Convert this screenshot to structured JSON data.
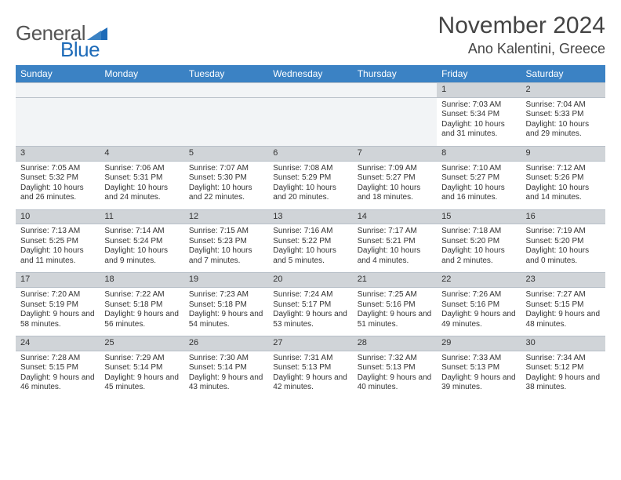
{
  "brand": {
    "word1": "General",
    "word2": "Blue"
  },
  "title": "November 2024",
  "location": "Ano Kalentini, Greece",
  "colors": {
    "header_blue": "#3b82c4",
    "daynum_row": "#d0d4d8",
    "border": "#b8c0c8",
    "text": "#333333",
    "background": "#ffffff",
    "logo_blue": "#1e6bb8"
  },
  "weekdays": [
    "Sunday",
    "Monday",
    "Tuesday",
    "Wednesday",
    "Thursday",
    "Friday",
    "Saturday"
  ],
  "weeks": [
    [
      {
        "day": "",
        "lines": []
      },
      {
        "day": "",
        "lines": []
      },
      {
        "day": "",
        "lines": []
      },
      {
        "day": "",
        "lines": []
      },
      {
        "day": "",
        "lines": []
      },
      {
        "day": "1",
        "lines": [
          "Sunrise: 7:03 AM",
          "Sunset: 5:34 PM",
          "Daylight: 10 hours and 31 minutes."
        ]
      },
      {
        "day": "2",
        "lines": [
          "Sunrise: 7:04 AM",
          "Sunset: 5:33 PM",
          "Daylight: 10 hours and 29 minutes."
        ]
      }
    ],
    [
      {
        "day": "3",
        "lines": [
          "Sunrise: 7:05 AM",
          "Sunset: 5:32 PM",
          "Daylight: 10 hours and 26 minutes."
        ]
      },
      {
        "day": "4",
        "lines": [
          "Sunrise: 7:06 AM",
          "Sunset: 5:31 PM",
          "Daylight: 10 hours and 24 minutes."
        ]
      },
      {
        "day": "5",
        "lines": [
          "Sunrise: 7:07 AM",
          "Sunset: 5:30 PM",
          "Daylight: 10 hours and 22 minutes."
        ]
      },
      {
        "day": "6",
        "lines": [
          "Sunrise: 7:08 AM",
          "Sunset: 5:29 PM",
          "Daylight: 10 hours and 20 minutes."
        ]
      },
      {
        "day": "7",
        "lines": [
          "Sunrise: 7:09 AM",
          "Sunset: 5:27 PM",
          "Daylight: 10 hours and 18 minutes."
        ]
      },
      {
        "day": "8",
        "lines": [
          "Sunrise: 7:10 AM",
          "Sunset: 5:27 PM",
          "Daylight: 10 hours and 16 minutes."
        ]
      },
      {
        "day": "9",
        "lines": [
          "Sunrise: 7:12 AM",
          "Sunset: 5:26 PM",
          "Daylight: 10 hours and 14 minutes."
        ]
      }
    ],
    [
      {
        "day": "10",
        "lines": [
          "Sunrise: 7:13 AM",
          "Sunset: 5:25 PM",
          "Daylight: 10 hours and 11 minutes."
        ]
      },
      {
        "day": "11",
        "lines": [
          "Sunrise: 7:14 AM",
          "Sunset: 5:24 PM",
          "Daylight: 10 hours and 9 minutes."
        ]
      },
      {
        "day": "12",
        "lines": [
          "Sunrise: 7:15 AM",
          "Sunset: 5:23 PM",
          "Daylight: 10 hours and 7 minutes."
        ]
      },
      {
        "day": "13",
        "lines": [
          "Sunrise: 7:16 AM",
          "Sunset: 5:22 PM",
          "Daylight: 10 hours and 5 minutes."
        ]
      },
      {
        "day": "14",
        "lines": [
          "Sunrise: 7:17 AM",
          "Sunset: 5:21 PM",
          "Daylight: 10 hours and 4 minutes."
        ]
      },
      {
        "day": "15",
        "lines": [
          "Sunrise: 7:18 AM",
          "Sunset: 5:20 PM",
          "Daylight: 10 hours and 2 minutes."
        ]
      },
      {
        "day": "16",
        "lines": [
          "Sunrise: 7:19 AM",
          "Sunset: 5:20 PM",
          "Daylight: 10 hours and 0 minutes."
        ]
      }
    ],
    [
      {
        "day": "17",
        "lines": [
          "Sunrise: 7:20 AM",
          "Sunset: 5:19 PM",
          "Daylight: 9 hours and 58 minutes."
        ]
      },
      {
        "day": "18",
        "lines": [
          "Sunrise: 7:22 AM",
          "Sunset: 5:18 PM",
          "Daylight: 9 hours and 56 minutes."
        ]
      },
      {
        "day": "19",
        "lines": [
          "Sunrise: 7:23 AM",
          "Sunset: 5:18 PM",
          "Daylight: 9 hours and 54 minutes."
        ]
      },
      {
        "day": "20",
        "lines": [
          "Sunrise: 7:24 AM",
          "Sunset: 5:17 PM",
          "Daylight: 9 hours and 53 minutes."
        ]
      },
      {
        "day": "21",
        "lines": [
          "Sunrise: 7:25 AM",
          "Sunset: 5:16 PM",
          "Daylight: 9 hours and 51 minutes."
        ]
      },
      {
        "day": "22",
        "lines": [
          "Sunrise: 7:26 AM",
          "Sunset: 5:16 PM",
          "Daylight: 9 hours and 49 minutes."
        ]
      },
      {
        "day": "23",
        "lines": [
          "Sunrise: 7:27 AM",
          "Sunset: 5:15 PM",
          "Daylight: 9 hours and 48 minutes."
        ]
      }
    ],
    [
      {
        "day": "24",
        "lines": [
          "Sunrise: 7:28 AM",
          "Sunset: 5:15 PM",
          "Daylight: 9 hours and 46 minutes."
        ]
      },
      {
        "day": "25",
        "lines": [
          "Sunrise: 7:29 AM",
          "Sunset: 5:14 PM",
          "Daylight: 9 hours and 45 minutes."
        ]
      },
      {
        "day": "26",
        "lines": [
          "Sunrise: 7:30 AM",
          "Sunset: 5:14 PM",
          "Daylight: 9 hours and 43 minutes."
        ]
      },
      {
        "day": "27",
        "lines": [
          "Sunrise: 7:31 AM",
          "Sunset: 5:13 PM",
          "Daylight: 9 hours and 42 minutes."
        ]
      },
      {
        "day": "28",
        "lines": [
          "Sunrise: 7:32 AM",
          "Sunset: 5:13 PM",
          "Daylight: 9 hours and 40 minutes."
        ]
      },
      {
        "day": "29",
        "lines": [
          "Sunrise: 7:33 AM",
          "Sunset: 5:13 PM",
          "Daylight: 9 hours and 39 minutes."
        ]
      },
      {
        "day": "30",
        "lines": [
          "Sunrise: 7:34 AM",
          "Sunset: 5:12 PM",
          "Daylight: 9 hours and 38 minutes."
        ]
      }
    ]
  ]
}
